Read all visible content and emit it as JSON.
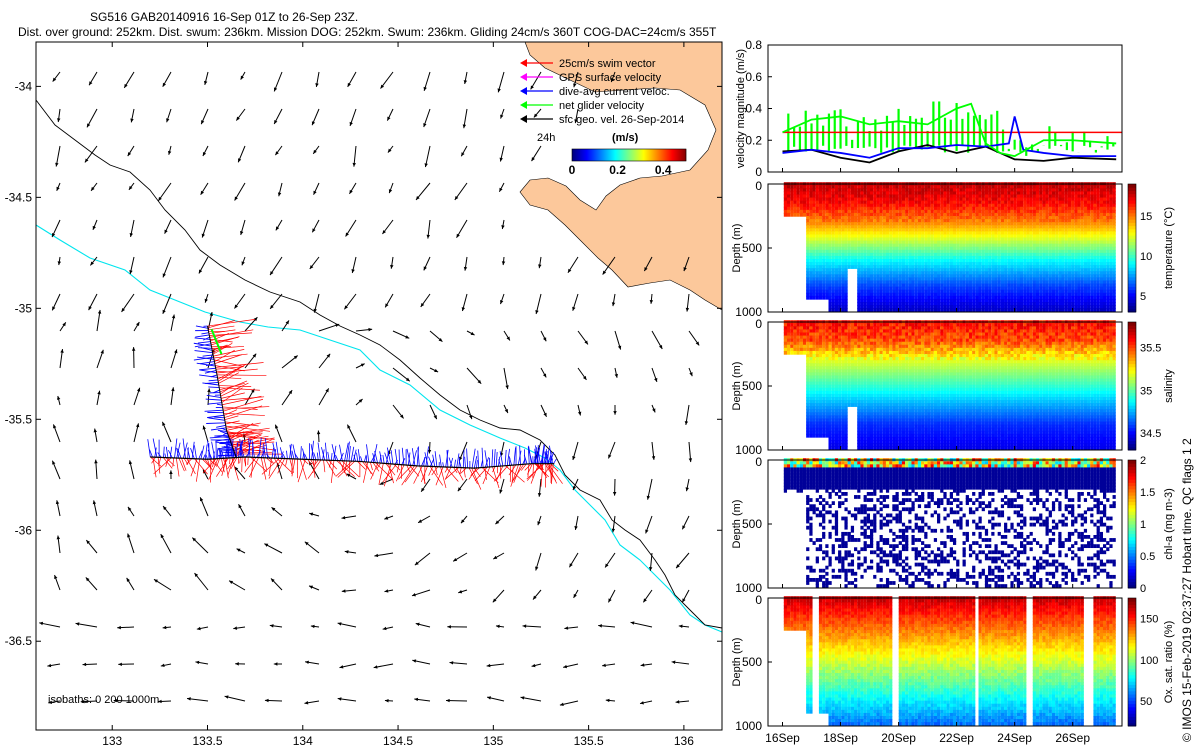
{
  "header": {
    "line1": "SG516 GAB20140916 16-Sep 01Z to 26-Sep 23Z.",
    "line2": "Dist. over ground: 252km. Dist. swum: 236km. Mission DOG: 252km. Swum: 236km. Gliding 24cm/s 360T COG-DAC=24cm/s 355T"
  },
  "footer_note": "© IMOS 15-Feb-2019 02:37:27 Hobart time. QC flags 1  2",
  "colors": {
    "land": "#fcc89b",
    "swim": "#ff0000",
    "gps": "#ff00ff",
    "dac": "#0000ff",
    "net": "#00ff00",
    "sfc": "#000000",
    "isobath200": "#00e5ee",
    "isobath1000": "#000000"
  },
  "chart_data": [
    {
      "type": "map",
      "xlim": [
        132.6,
        136.2
      ],
      "ylim": [
        -36.9,
        -33.8
      ],
      "xticks": [
        "133",
        "133.5",
        "134",
        "134.5",
        "135",
        "135.5",
        "136"
      ],
      "yticks": [
        "-34",
        "-34.5",
        "-35",
        "-35.5",
        "-36",
        "-36.5"
      ],
      "isobath_label": "isobaths: 0   200  1000m",
      "legend": [
        "25cm/s swim vector",
        "GPS surface velocity",
        "dive-avg current veloc.",
        "net glider velocity",
        "sfc geo. vel. 26-Sep-2014"
      ],
      "legend_24h": "24h",
      "colorbar_title": "(m/s)",
      "colorbar_ticks": [
        "0",
        "0.2",
        "0.4"
      ],
      "colorbar_range": [
        0,
        0.5
      ],
      "glider_track": [
        [
          133.2,
          -35.67
        ],
        [
          133.5,
          -35.68
        ],
        [
          133.7,
          -35.67
        ],
        [
          134.0,
          -35.68
        ],
        [
          134.3,
          -35.69
        ],
        [
          134.6,
          -35.71
        ],
        [
          134.9,
          -35.72
        ],
        [
          135.2,
          -35.7
        ],
        [
          135.32,
          -35.7
        ]
      ],
      "glider_track_branch": [
        [
          133.5,
          -35.08
        ],
        [
          133.55,
          -35.3
        ],
        [
          133.6,
          -35.55
        ],
        [
          133.65,
          -35.67
        ]
      ]
    },
    {
      "type": "line",
      "ylabel": "velocity magnitude (m/s)",
      "ylim": [
        0,
        0.8
      ],
      "yticks": [
        "0",
        "0.2",
        "0.4",
        "0.6",
        "0.8"
      ],
      "xlim": [
        15.5,
        27.7
      ],
      "series": [
        {
          "color": "#ff0000",
          "x": [
            16,
            27.7
          ],
          "values": [
            0.25,
            0.25
          ]
        },
        {
          "color": "#000000",
          "x": [
            16,
            17,
            18,
            19,
            20,
            21,
            22,
            23,
            24,
            25,
            26,
            27.5
          ],
          "values": [
            0.13,
            0.14,
            0.09,
            0.06,
            0.13,
            0.17,
            0.12,
            0.16,
            0.08,
            0.07,
            0.09,
            0.08
          ]
        },
        {
          "color": "#0000ff",
          "x": [
            16,
            17,
            18,
            19,
            20,
            21,
            22,
            23,
            23.8,
            24,
            24.3,
            25,
            26,
            27.5
          ],
          "values": [
            0.12,
            0.14,
            0.12,
            0.09,
            0.15,
            0.15,
            0.17,
            0.16,
            0.18,
            0.35,
            0.14,
            0.12,
            0.1,
            0.1
          ]
        },
        {
          "color": "#00ff00",
          "x": [
            16,
            17,
            18,
            19,
            20,
            21,
            22,
            22.5,
            23,
            23.5,
            24,
            25,
            26,
            27.5
          ],
          "values": [
            0.25,
            0.33,
            0.35,
            0.3,
            0.32,
            0.3,
            0.4,
            0.43,
            0.18,
            0.12,
            0.1,
            0.2,
            0.2,
            0.18
          ]
        }
      ]
    },
    {
      "type": "heatmap",
      "ylabel": "Depth (m)",
      "cbar_label": "temperature (°C)",
      "cbar_range": [
        3,
        19
      ],
      "cbar_ticks": [
        "5",
        "10",
        "15"
      ],
      "yticks": [
        "0",
        "500",
        "1000"
      ],
      "ylim": [
        0,
        1000
      ],
      "profile": [
        [
          0,
          18
        ],
        [
          150,
          17
        ],
        [
          300,
          15
        ],
        [
          450,
          12
        ],
        [
          600,
          9
        ],
        [
          800,
          6
        ],
        [
          1000,
          4
        ]
      ]
    },
    {
      "type": "heatmap",
      "ylabel": "Depth (m)",
      "cbar_label": "salinity",
      "cbar_range": [
        34.3,
        35.8
      ],
      "cbar_ticks": [
        "34.5",
        "35",
        "35.5"
      ],
      "yticks": [
        "0",
        "500",
        "1000"
      ],
      "ylim": [
        0,
        1000
      ],
      "profile": [
        [
          0,
          35.6
        ],
        [
          150,
          35.5
        ],
        [
          300,
          35.2
        ],
        [
          450,
          35.0
        ],
        [
          600,
          34.8
        ],
        [
          800,
          34.55
        ],
        [
          1000,
          34.45
        ]
      ]
    },
    {
      "type": "heatmap",
      "ylabel": "Depth (m)",
      "cbar_label": "chl-a (mg m-3)",
      "cbar_range": [
        0,
        2
      ],
      "cbar_ticks": [
        "0",
        "0.5",
        "1",
        "1.5",
        "2"
      ],
      "yticks": [
        "0",
        "500",
        "1000"
      ],
      "ylim": [
        0,
        1000
      ]
    },
    {
      "type": "heatmap",
      "ylabel": "Depth (m)",
      "cbar_label": "Ox. sat. ratio (%)",
      "cbar_range": [
        20,
        175
      ],
      "cbar_ticks": [
        "50",
        "100",
        "150"
      ],
      "yticks": [
        "0",
        "500",
        "1000"
      ],
      "ylim": [
        0,
        1000
      ],
      "x_tick_labels": [
        "16Sep",
        "18Sep",
        "20Sep",
        "22Sep",
        "24Sep",
        "26Sep"
      ],
      "x_tick_values": [
        16,
        18,
        20,
        22,
        24,
        26
      ]
    }
  ]
}
